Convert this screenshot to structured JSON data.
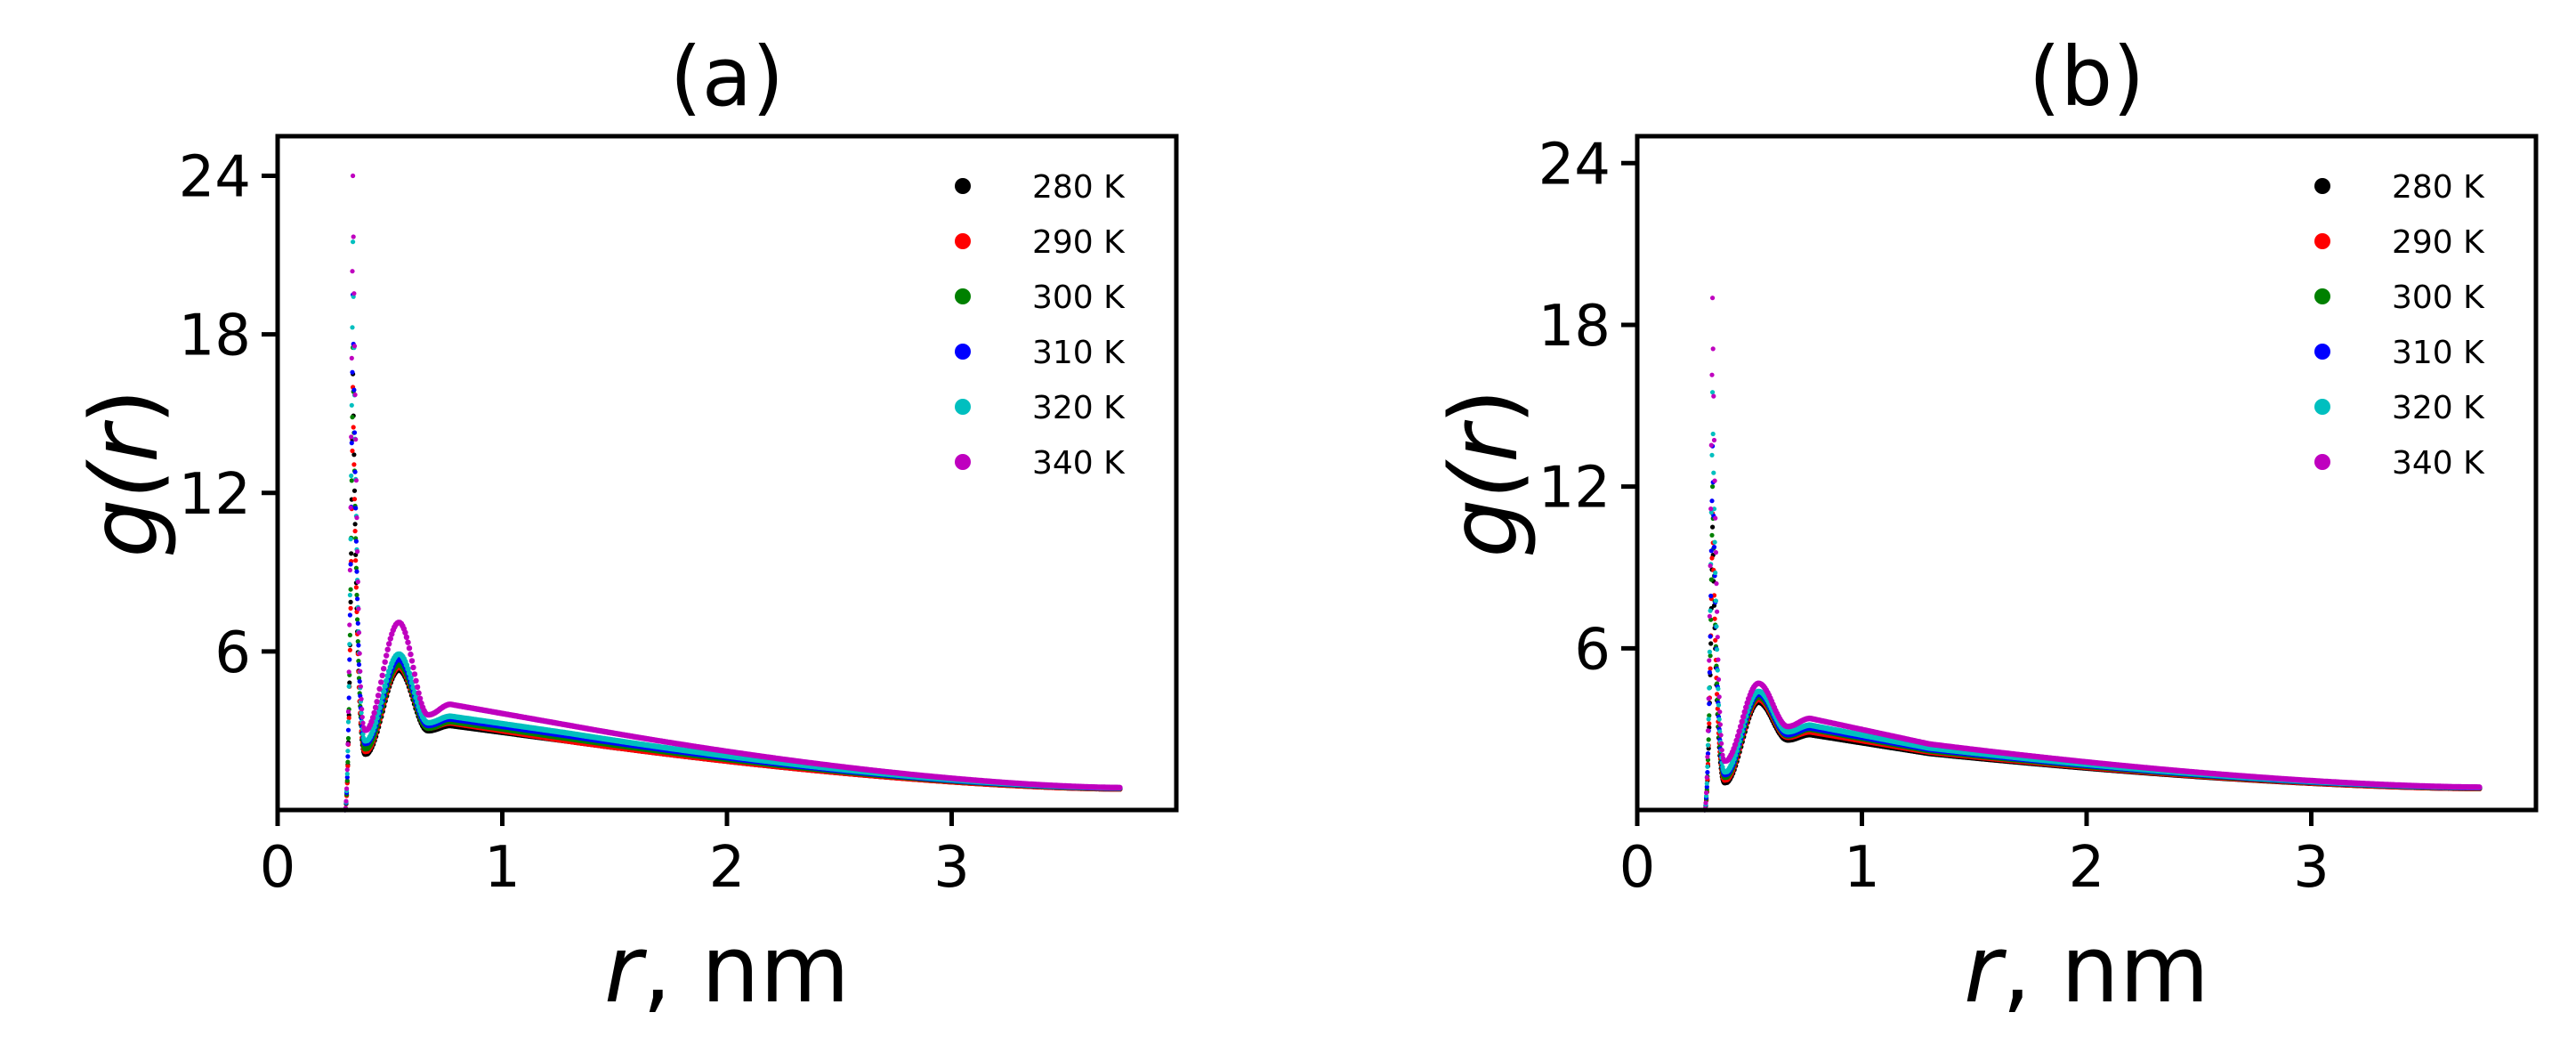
{
  "chart_data": [
    {
      "type": "scatter",
      "title": "(a)",
      "xlabel_var": "r",
      "xlabel_unit": ", nm",
      "ylabel_func": "g(",
      "ylabel_var": "r",
      "ylabel_close": ")",
      "xlim": [
        0,
        4.0
      ],
      "ylim": [
        0,
        25.5
      ],
      "xticks": [
        "0",
        "1",
        "2",
        "3"
      ],
      "xtick_values": [
        0,
        1,
        2,
        3
      ],
      "yticks": [
        "6",
        "12",
        "18",
        "24"
      ],
      "ytick_values": [
        6,
        12,
        18,
        24
      ],
      "grid": false,
      "legend": "top-right",
      "series": [
        {
          "name": "280 K",
          "color": "#000000",
          "peak1": 16.5,
          "min1": 2.1,
          "peak2": 5.3,
          "min2": 3.0,
          "shoulder": 3.2,
          "mid": 2.6,
          "tail": 0.8
        },
        {
          "name": "290 K",
          "color": "#ff0000",
          "peak1": 16.0,
          "min1": 2.2,
          "peak2": 5.4,
          "min2": 3.1,
          "shoulder": 3.3,
          "mid": 2.6,
          "tail": 0.8
        },
        {
          "name": "300 K",
          "color": "#008000",
          "peak1": 17.5,
          "min1": 2.3,
          "peak2": 5.5,
          "min2": 3.1,
          "shoulder": 3.35,
          "mid": 2.7,
          "tail": 0.82
        },
        {
          "name": "310 K",
          "color": "#0000ff",
          "peak1": 19.5,
          "min1": 2.5,
          "peak2": 5.7,
          "min2": 3.2,
          "shoulder": 3.45,
          "mid": 2.8,
          "tail": 0.83
        },
        {
          "name": "320 K",
          "color": "#00bfbf",
          "peak1": 21.5,
          "min1": 2.6,
          "peak2": 5.9,
          "min2": 3.3,
          "shoulder": 3.55,
          "mid": 2.9,
          "tail": 0.84
        },
        {
          "name": "340 K",
          "color": "#bf00bf",
          "peak1": 24.0,
          "min1": 3.0,
          "peak2": 7.1,
          "min2": 3.6,
          "shoulder": 4.0,
          "mid": 3.2,
          "tail": 0.85
        }
      ]
    },
    {
      "type": "scatter",
      "title": "(b)",
      "xlabel_var": "r",
      "xlabel_unit": ", nm",
      "ylabel_func": "g(",
      "ylabel_var": "r",
      "ylabel_close": ")",
      "xlim": [
        0,
        4.0
      ],
      "ylim": [
        0,
        25.0
      ],
      "xticks": [
        "0",
        "1",
        "2",
        "3"
      ],
      "xtick_values": [
        0,
        1,
        2,
        3
      ],
      "yticks": [
        "6",
        "12",
        "18",
        "24"
      ],
      "ytick_values": [
        6,
        12,
        18,
        24
      ],
      "grid": false,
      "legend": "top-right",
      "series": [
        {
          "name": "280 K",
          "color": "#000000",
          "peak1": 10.5,
          "min1": 1.0,
          "peak2": 4.0,
          "min2": 2.6,
          "shoulder": 2.8,
          "mid": 2.1,
          "tail": 0.8
        },
        {
          "name": "290 K",
          "color": "#ff0000",
          "peak1": 11.0,
          "min1": 1.1,
          "peak2": 4.1,
          "min2": 2.7,
          "shoulder": 2.9,
          "mid": 2.15,
          "tail": 0.8
        },
        {
          "name": "300 K",
          "color": "#008000",
          "peak1": 12.0,
          "min1": 1.2,
          "peak2": 4.2,
          "min2": 2.75,
          "shoulder": 3.0,
          "mid": 2.2,
          "tail": 0.82
        },
        {
          "name": "310 K",
          "color": "#0000ff",
          "peak1": 13.5,
          "min1": 1.3,
          "peak2": 4.3,
          "min2": 2.8,
          "shoulder": 3.05,
          "mid": 2.25,
          "tail": 0.83
        },
        {
          "name": "320 K",
          "color": "#00bfbf",
          "peak1": 15.5,
          "min1": 1.4,
          "peak2": 4.4,
          "min2": 2.9,
          "shoulder": 3.15,
          "mid": 2.3,
          "tail": 0.84
        },
        {
          "name": "340 K",
          "color": "#bf00bf",
          "peak1": 19.0,
          "min1": 1.8,
          "peak2": 4.7,
          "min2": 3.1,
          "shoulder": 3.4,
          "mid": 2.45,
          "tail": 0.85
        }
      ]
    }
  ]
}
